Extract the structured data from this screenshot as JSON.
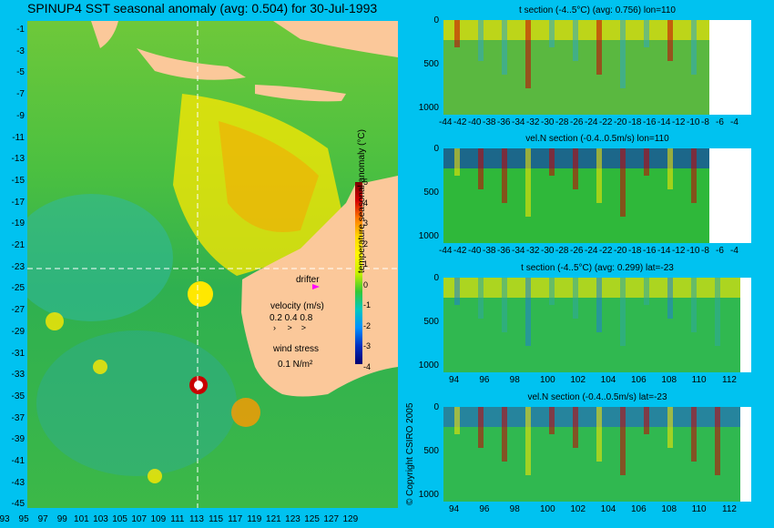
{
  "main_title": "SPINUP4 SST seasonal anomaly (avg: 0.504) for 30-Jul-1993",
  "map": {
    "y_labels": [
      "-1",
      "-3",
      "-5",
      "-7",
      "-9",
      "-11",
      "-13",
      "-15",
      "-17",
      "-19",
      "-21",
      "-23",
      "-25",
      "-27",
      "-29",
      "-31",
      "-33",
      "-35",
      "-37",
      "-39",
      "-41",
      "-43",
      "-45"
    ],
    "x_labels": [
      "93",
      "95",
      "97",
      "99",
      "101",
      "103",
      "105",
      "107",
      "109",
      "111",
      "113",
      "115",
      "117",
      "119",
      "121",
      "123",
      "125",
      "127",
      "129"
    ],
    "colorbar": {
      "ticks": [
        "5",
        "4",
        "3",
        "2",
        "1",
        "0",
        "-1",
        "-2",
        "-3",
        "-4"
      ],
      "label": "temperature seasonal anomaly (°C)"
    },
    "legend": {
      "drifter": "drifter",
      "velocity_title": "velocity (m/s)",
      "velocity_scale": "0.2 0.4 0.8",
      "wind_title": "wind stress",
      "wind_scale": "0.1 N/m²"
    },
    "colors": {
      "land": "#fbc89a",
      "ocean_mid": "#2fb83a",
      "warm": "#ffe800",
      "hot": "#c80000",
      "vector": "#ff00ff"
    }
  },
  "panels": [
    {
      "title": "t section (-4..5°C) (avg: 0.756) lon=110",
      "y_labels": [
        "0",
        "500",
        "1000"
      ],
      "x_labels": [
        "-44",
        "-42",
        "-40",
        "-38",
        "-36",
        "-34",
        "-32",
        "-30",
        "-28",
        "-26",
        "-24",
        "-22",
        "-20",
        "-18",
        "-16",
        "-14",
        "-12",
        "-10",
        "-8",
        "-6",
        "-4"
      ]
    },
    {
      "title": "vel.N section (-0.4..0.5m/s) lon=110",
      "y_labels": [
        "0",
        "500",
        "1000"
      ],
      "x_labels": [
        "-44",
        "-42",
        "-40",
        "-38",
        "-36",
        "-34",
        "-32",
        "-30",
        "-28",
        "-26",
        "-24",
        "-22",
        "-20",
        "-18",
        "-16",
        "-14",
        "-12",
        "-10",
        "-8",
        "-6",
        "-4"
      ]
    },
    {
      "title": "t section (-4..5°C) (avg: 0.299) lat=-23",
      "y_labels": [
        "0",
        "500",
        "1000"
      ],
      "x_labels": [
        "94",
        "96",
        "98",
        "100",
        "102",
        "104",
        "106",
        "108",
        "110",
        "112"
      ]
    },
    {
      "title": "vel.N section (-0.4..0.5m/s) lat=-23",
      "y_labels": [
        "0",
        "500",
        "1000"
      ],
      "x_labels": [
        "94",
        "96",
        "98",
        "100",
        "102",
        "104",
        "106",
        "108",
        "110",
        "112"
      ]
    }
  ],
  "copyright": "© Copyright CSIRO 2005"
}
